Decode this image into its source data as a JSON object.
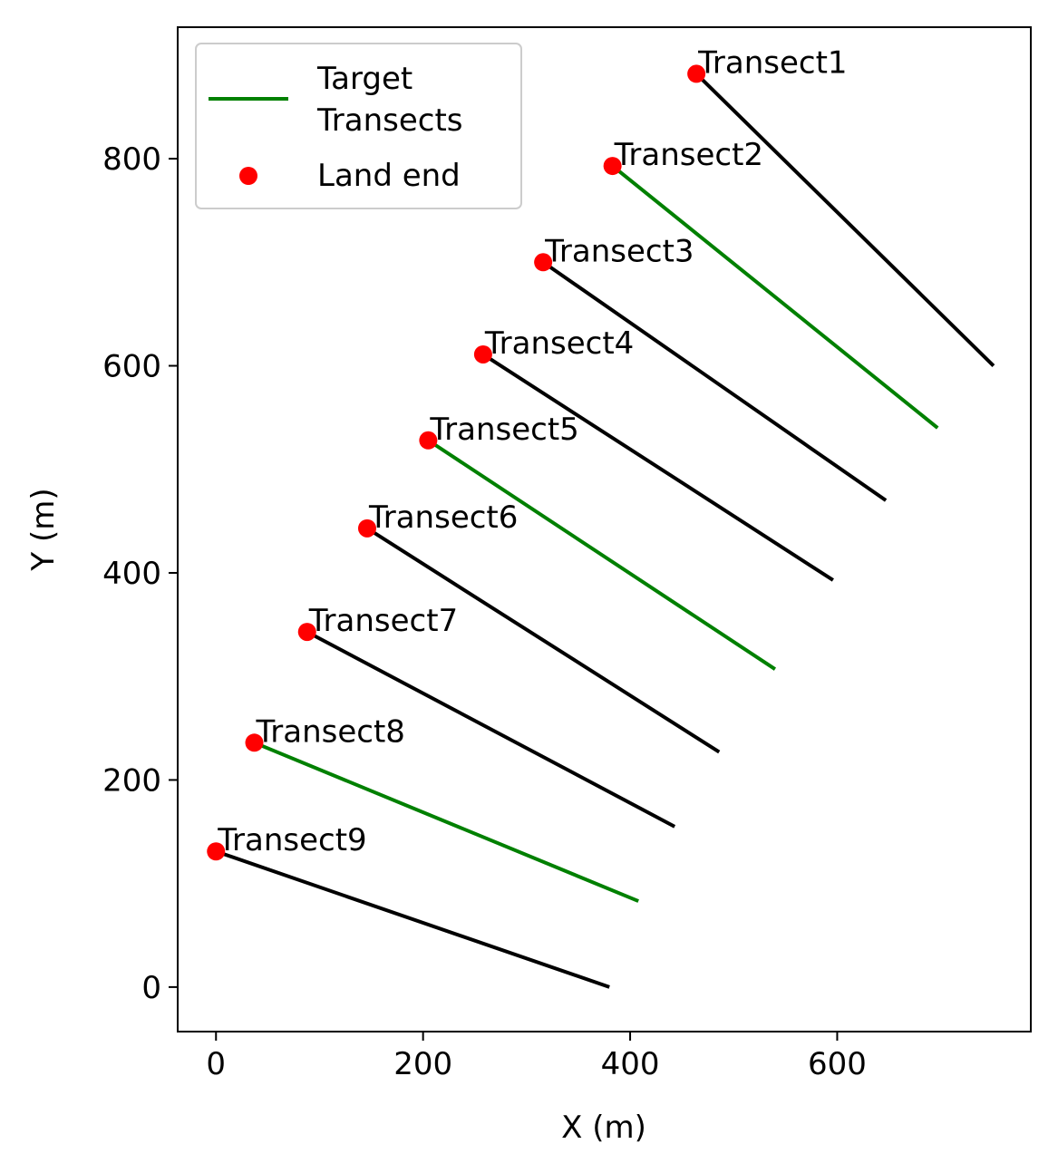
{
  "chart_data": {
    "type": "line",
    "xlabel": "X (m)",
    "ylabel": "Y (m)",
    "xlim": [
      -37,
      787
    ],
    "ylim": [
      -43,
      927
    ],
    "xticks": [
      0,
      200,
      400,
      600
    ],
    "yticks": [
      0,
      200,
      400,
      600,
      800
    ],
    "grid": false,
    "legend": {
      "placement": "top-left",
      "entries": [
        {
          "label": "Target\n Transects",
          "kind": "line",
          "color": "#008000"
        },
        {
          "label": "Land end",
          "kind": "marker",
          "color": "#ff0000"
        }
      ]
    },
    "colors": {
      "target": "#008000",
      "other": "#000000",
      "land_end": "#ff0000"
    },
    "transects": [
      {
        "name": "Transect1",
        "land": [
          464,
          882
        ],
        "sea": [
          751,
          600
        ],
        "target": false
      },
      {
        "name": "Transect2",
        "land": [
          383,
          793
        ],
        "sea": [
          697,
          540
        ],
        "target": true
      },
      {
        "name": "Transect3",
        "land": [
          316,
          700
        ],
        "sea": [
          647,
          470
        ],
        "target": false
      },
      {
        "name": "Transect4",
        "land": [
          258,
          611
        ],
        "sea": [
          596,
          393
        ],
        "target": false
      },
      {
        "name": "Transect5",
        "land": [
          205,
          528
        ],
        "sea": [
          540,
          307
        ],
        "target": true
      },
      {
        "name": "Transect6",
        "land": [
          146,
          443
        ],
        "sea": [
          486,
          227
        ],
        "target": false
      },
      {
        "name": "Transect7",
        "land": [
          88,
          343
        ],
        "sea": [
          443,
          155
        ],
        "target": false
      },
      {
        "name": "Transect8",
        "land": [
          37,
          236
        ],
        "sea": [
          408,
          83
        ],
        "target": true
      },
      {
        "name": "Transect9",
        "land": [
          0,
          131
        ],
        "sea": [
          380,
          0
        ],
        "target": false
      }
    ]
  }
}
